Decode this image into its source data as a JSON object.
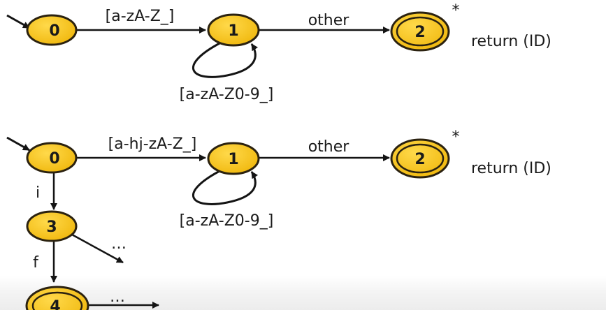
{
  "colors": {
    "state_fill": "#f9c51c",
    "state_stroke": "#2b2210",
    "arrow": "#141414",
    "text": "#1a1a1a"
  },
  "diagram_top": {
    "states": {
      "s0": "0",
      "s1": "1",
      "s2": "2"
    },
    "edge_0_1": "[a-zA-Z_]",
    "edge_1_2": "other",
    "loop_1": "[a-zA-Z0-9_]",
    "retract_mark": "*",
    "action": "return (ID)"
  },
  "diagram_bottom": {
    "states": {
      "s0": "0",
      "s1": "1",
      "s2": "2",
      "s3": "3",
      "s4": "4"
    },
    "edge_0_1": "[a-hj-zA-Z_]",
    "edge_1_2": "other",
    "loop_1": "[a-zA-Z0-9_]",
    "edge_0_3": "i",
    "edge_3_4": "f",
    "edge_3_more": "…",
    "edge_4_more": "…",
    "retract_mark": "*",
    "action": "return (ID)"
  }
}
